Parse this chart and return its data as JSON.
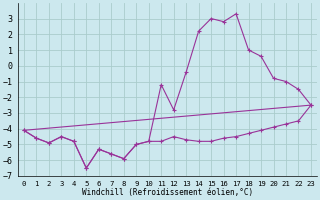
{
  "xlabel": "Windchill (Refroidissement éolien,°C)",
  "bg_color": "#cce8ee",
  "grid_color": "#aacccc",
  "line_color": "#993399",
  "xlim": [
    -0.5,
    23.5
  ],
  "ylim": [
    -7,
    4
  ],
  "yticks": [
    -7,
    -6,
    -5,
    -4,
    -3,
    -2,
    -1,
    0,
    1,
    2,
    3
  ],
  "xticks": [
    0,
    1,
    2,
    3,
    4,
    5,
    6,
    7,
    8,
    9,
    10,
    11,
    12,
    13,
    14,
    15,
    16,
    17,
    18,
    19,
    20,
    21,
    22,
    23
  ],
  "series": [
    {
      "x": [
        0,
        1,
        2,
        3,
        4,
        5,
        6,
        7,
        8,
        9,
        10,
        11,
        12,
        13,
        14,
        15,
        16,
        17,
        18,
        19,
        20,
        21,
        22,
        23
      ],
      "y": [
        -4.1,
        -4.6,
        -4.9,
        -4.5,
        -4.8,
        -6.5,
        -5.3,
        -5.6,
        -5.9,
        -5.0,
        -4.8,
        -4.8,
        -4.5,
        -4.7,
        -4.8,
        -4.8,
        -4.6,
        -4.5,
        -4.3,
        -4.1,
        -3.9,
        -3.7,
        -3.5,
        -2.5
      ],
      "markers": true
    },
    {
      "x": [
        0,
        1,
        2,
        3,
        4,
        5,
        6,
        7,
        8,
        9,
        10,
        11,
        12,
        13,
        14,
        15,
        16,
        17,
        18,
        19,
        20,
        21,
        22,
        23
      ],
      "y": [
        -4.1,
        -4.6,
        -4.9,
        -4.5,
        -4.8,
        -6.5,
        -5.3,
        -5.6,
        -5.9,
        -5.0,
        -4.8,
        -1.2,
        -2.8,
        -0.4,
        2.2,
        3.0,
        2.8,
        3.3,
        1.0,
        0.6,
        -0.8,
        -1.0,
        -1.5,
        -2.5
      ],
      "markers": true
    },
    {
      "x": [
        0,
        23
      ],
      "y": [
        -4.1,
        -2.5
      ],
      "markers": false
    }
  ]
}
